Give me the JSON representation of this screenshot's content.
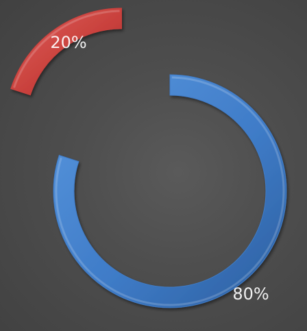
{
  "chart_data": {
    "type": "pie",
    "style": "exploded-donut",
    "categories": [
      "",
      ""
    ],
    "values": [
      20,
      80
    ],
    "data_labels": [
      "20%",
      "80%"
    ],
    "colors": [
      "#c8403c",
      "#3f7cc8"
    ],
    "title": "",
    "legend": "none"
  }
}
